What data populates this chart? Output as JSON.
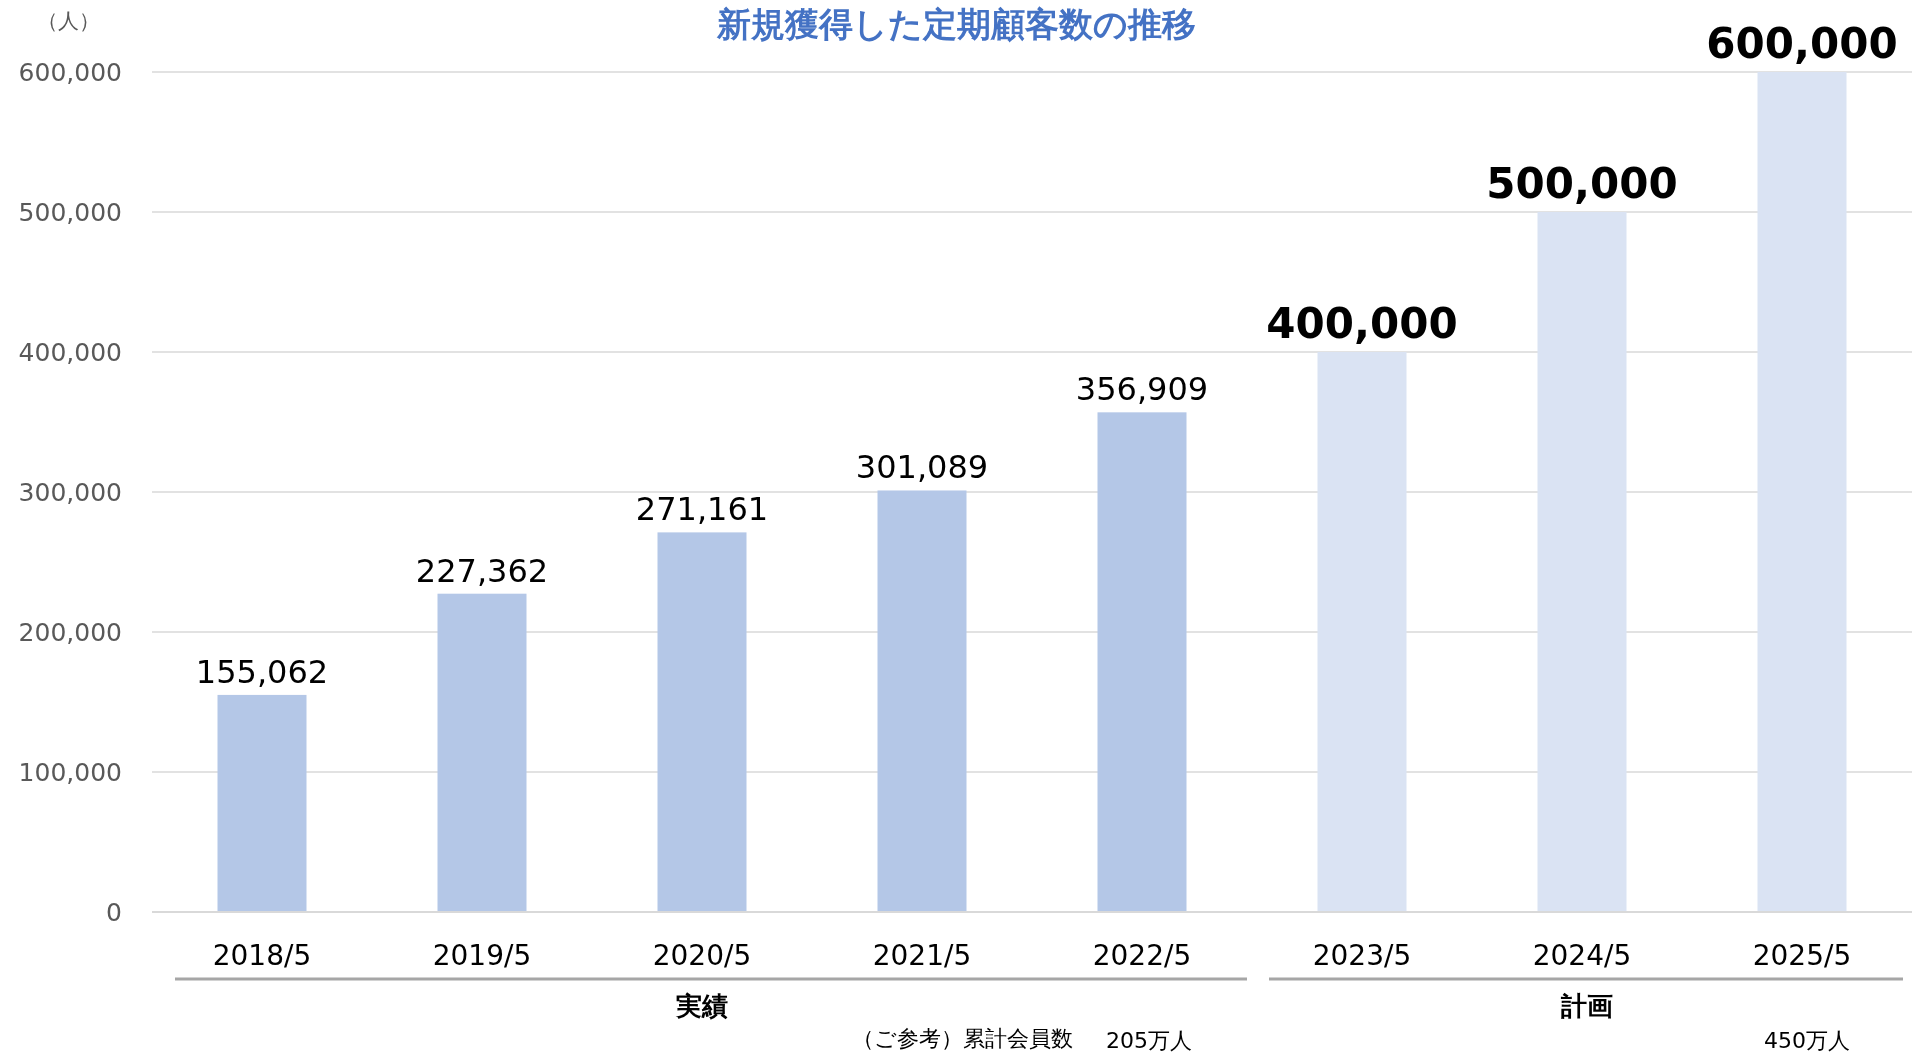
{
  "chart_data": {
    "type": "bar",
    "title": "新規獲得した定期顧客数の推移",
    "ylabel": "（人）",
    "categories": [
      "2018/5",
      "2019/5",
      "2020/5",
      "2021/5",
      "2022/5",
      "2023/5",
      "2024/5",
      "2025/5"
    ],
    "values": [
      155062,
      227362,
      271161,
      301089,
      356909,
      400000,
      500000,
      600000
    ],
    "colors": [
      "#b4c7e7",
      "#b4c7e7",
      "#b4c7e7",
      "#b4c7e7",
      "#b4c7e7",
      "#dae3f3",
      "#dae3f3",
      "#dae3f3"
    ],
    "value_labels": [
      "155,062",
      "227,362",
      "271,161",
      "301,089",
      "356,909",
      "400,000",
      "500,000",
      "600,000"
    ],
    "ylim": [
      0,
      600000
    ],
    "yticks": [
      {
        "value": 0,
        "label": "0"
      },
      {
        "value": 100000,
        "label": "100,000"
      },
      {
        "value": 200000,
        "label": "200,000"
      },
      {
        "value": 300000,
        "label": "300,000"
      },
      {
        "value": 400000,
        "label": "400,000"
      },
      {
        "value": 500000,
        "label": "500,000"
      },
      {
        "value": 600000,
        "label": "600,000"
      }
    ],
    "grid": "y",
    "annotations": [
      "実績",
      "計画",
      "（ご参考）累計会員数",
      "205万人",
      "450万人"
    ]
  }
}
